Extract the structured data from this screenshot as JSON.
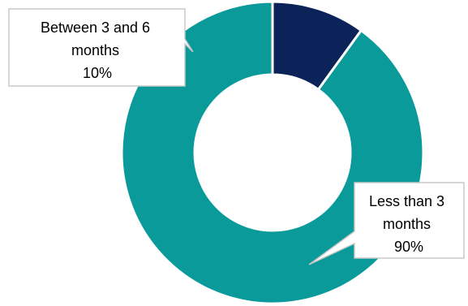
{
  "chart_data": {
    "type": "pie",
    "donut": true,
    "slices": [
      {
        "label": "Between 3 and 6 months",
        "value": 10,
        "value_label": "10%",
        "color": "#0b2359",
        "callout_lines": [
          "Between 3 and 6",
          "months",
          "10%"
        ]
      },
      {
        "label": "Less than 3 months",
        "value": 90,
        "value_label": "90%",
        "color": "#0a9a9a",
        "callout_lines": [
          "Less than 3",
          "months",
          "90%"
        ]
      }
    ]
  }
}
